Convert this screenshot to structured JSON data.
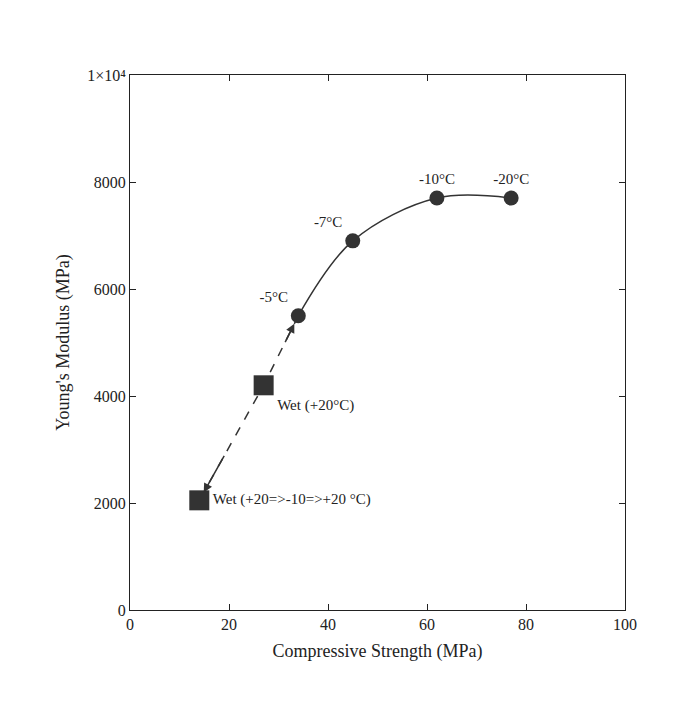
{
  "chart_data": {
    "type": "scatter",
    "xlabel": "Compressive Strength (MPa)",
    "ylabel": "Young's Modulus (MPa)",
    "xlim": [
      0,
      100
    ],
    "xticks": [
      0,
      20,
      40,
      60,
      80,
      100
    ],
    "ylim": [
      0,
      10000
    ],
    "yticks": [
      0,
      2000,
      4000,
      6000,
      8000,
      {
        "value": 10000,
        "label": "1×10⁴"
      }
    ],
    "grid": false,
    "series": [
      {
        "x": [
          34,
          45,
          62,
          77
        ],
        "values": [
          5500,
          6900,
          7700,
          7700
        ],
        "labels": [
          "-5°C",
          "-7°C",
          "-10°C",
          "-20°C"
        ],
        "color": "#333333",
        "marker": "circle",
        "line_style": "solid"
      },
      {
        "x": [
          27,
          14
        ],
        "values": [
          4200,
          2050
        ],
        "labels": [
          "Wet (+20°C)",
          "Wet (+20=>-10=>+20 °C)"
        ],
        "color": "#333333",
        "marker": "square",
        "line_style": "dash"
      }
    ]
  }
}
